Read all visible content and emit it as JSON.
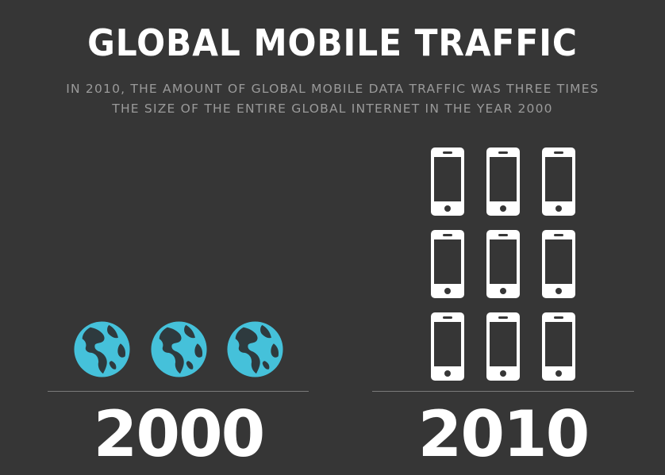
{
  "title": "GLOBAL MOBILE TRAFFIC",
  "subtitle": {
    "line1": "IN 2010, THE AMOUNT OF GLOBAL MOBILE DATA TRAFFIC WAS THREE TIMES",
    "line2": "THE SIZE OF THE ENTIRE GLOBAL INTERNET IN THE YEAR 2000"
  },
  "left_panel": {
    "year": "2000",
    "icon": "globe-icon",
    "icon_count": 3
  },
  "right_panel": {
    "year": "2010",
    "icon": "smartphone-icon",
    "icon_count": 9
  },
  "colors": {
    "background": "#363636",
    "title": "#ffffff",
    "subtitle": "#9a9a9a",
    "globe_ocean": "#45c1da",
    "globe_land": "#2e3a3e",
    "phone": "#ffffff",
    "divider": "#7a7a7a"
  }
}
